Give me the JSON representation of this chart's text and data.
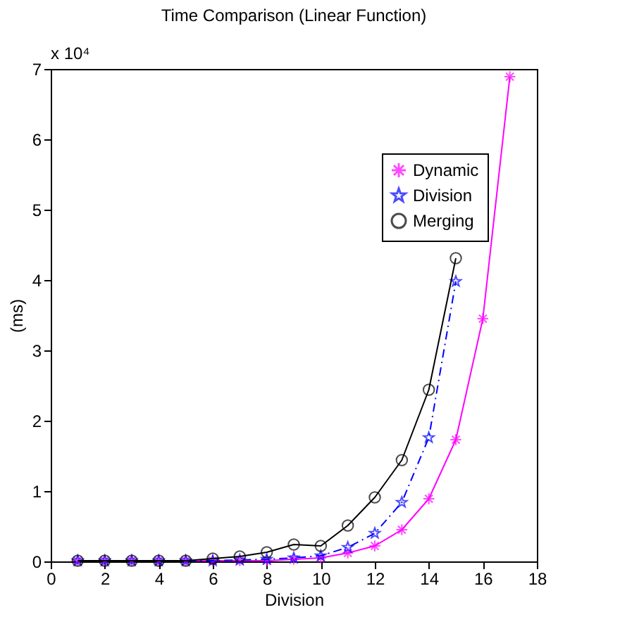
{
  "chart_data": {
    "type": "line",
    "title": "Time Comparison (Linear Function)",
    "xlabel": "Division",
    "ylabel": "(ms)",
    "annotations": [
      "x 10⁴"
    ],
    "x": [
      1,
      2,
      3,
      4,
      5,
      6,
      7,
      8,
      9,
      10,
      11,
      12,
      13,
      14,
      15,
      16,
      17
    ],
    "series": [
      {
        "name": "Dynamic",
        "color": "#ff00ff",
        "marker": "cross",
        "line_style": "solid",
        "values": [
          0.01,
          0.01,
          0.01,
          0.01,
          0.01,
          0.01,
          0.01,
          0.01,
          0.03,
          0.05,
          0.12,
          0.22,
          0.45,
          0.89,
          1.73,
          3.45,
          6.89
        ]
      },
      {
        "name": "Division",
        "color": "#0000ff",
        "marker": "star",
        "line_style": "dashed",
        "values": [
          0.01,
          0.01,
          0.01,
          0.01,
          0.01,
          0.01,
          0.02,
          0.03,
          0.05,
          0.08,
          0.2,
          0.4,
          0.84,
          1.76,
          3.98,
          null,
          null
        ]
      },
      {
        "name": "Merging",
        "color": "#000000",
        "marker": "circle",
        "line_style": "solid",
        "values": [
          0.01,
          0.01,
          0.01,
          0.01,
          0.01,
          0.04,
          0.07,
          0.13,
          0.24,
          0.22,
          0.51,
          0.91,
          1.44,
          2.44,
          4.31,
          null,
          null
        ]
      }
    ],
    "xlim": [
      0,
      18
    ],
    "xticks": [
      0,
      2,
      4,
      6,
      8,
      10,
      12,
      14,
      16,
      18
    ],
    "ylim": [
      0,
      7
    ],
    "yticks": [
      0,
      1,
      2,
      3,
      4,
      5,
      6,
      7
    ],
    "grid": false,
    "legend": "top right"
  }
}
